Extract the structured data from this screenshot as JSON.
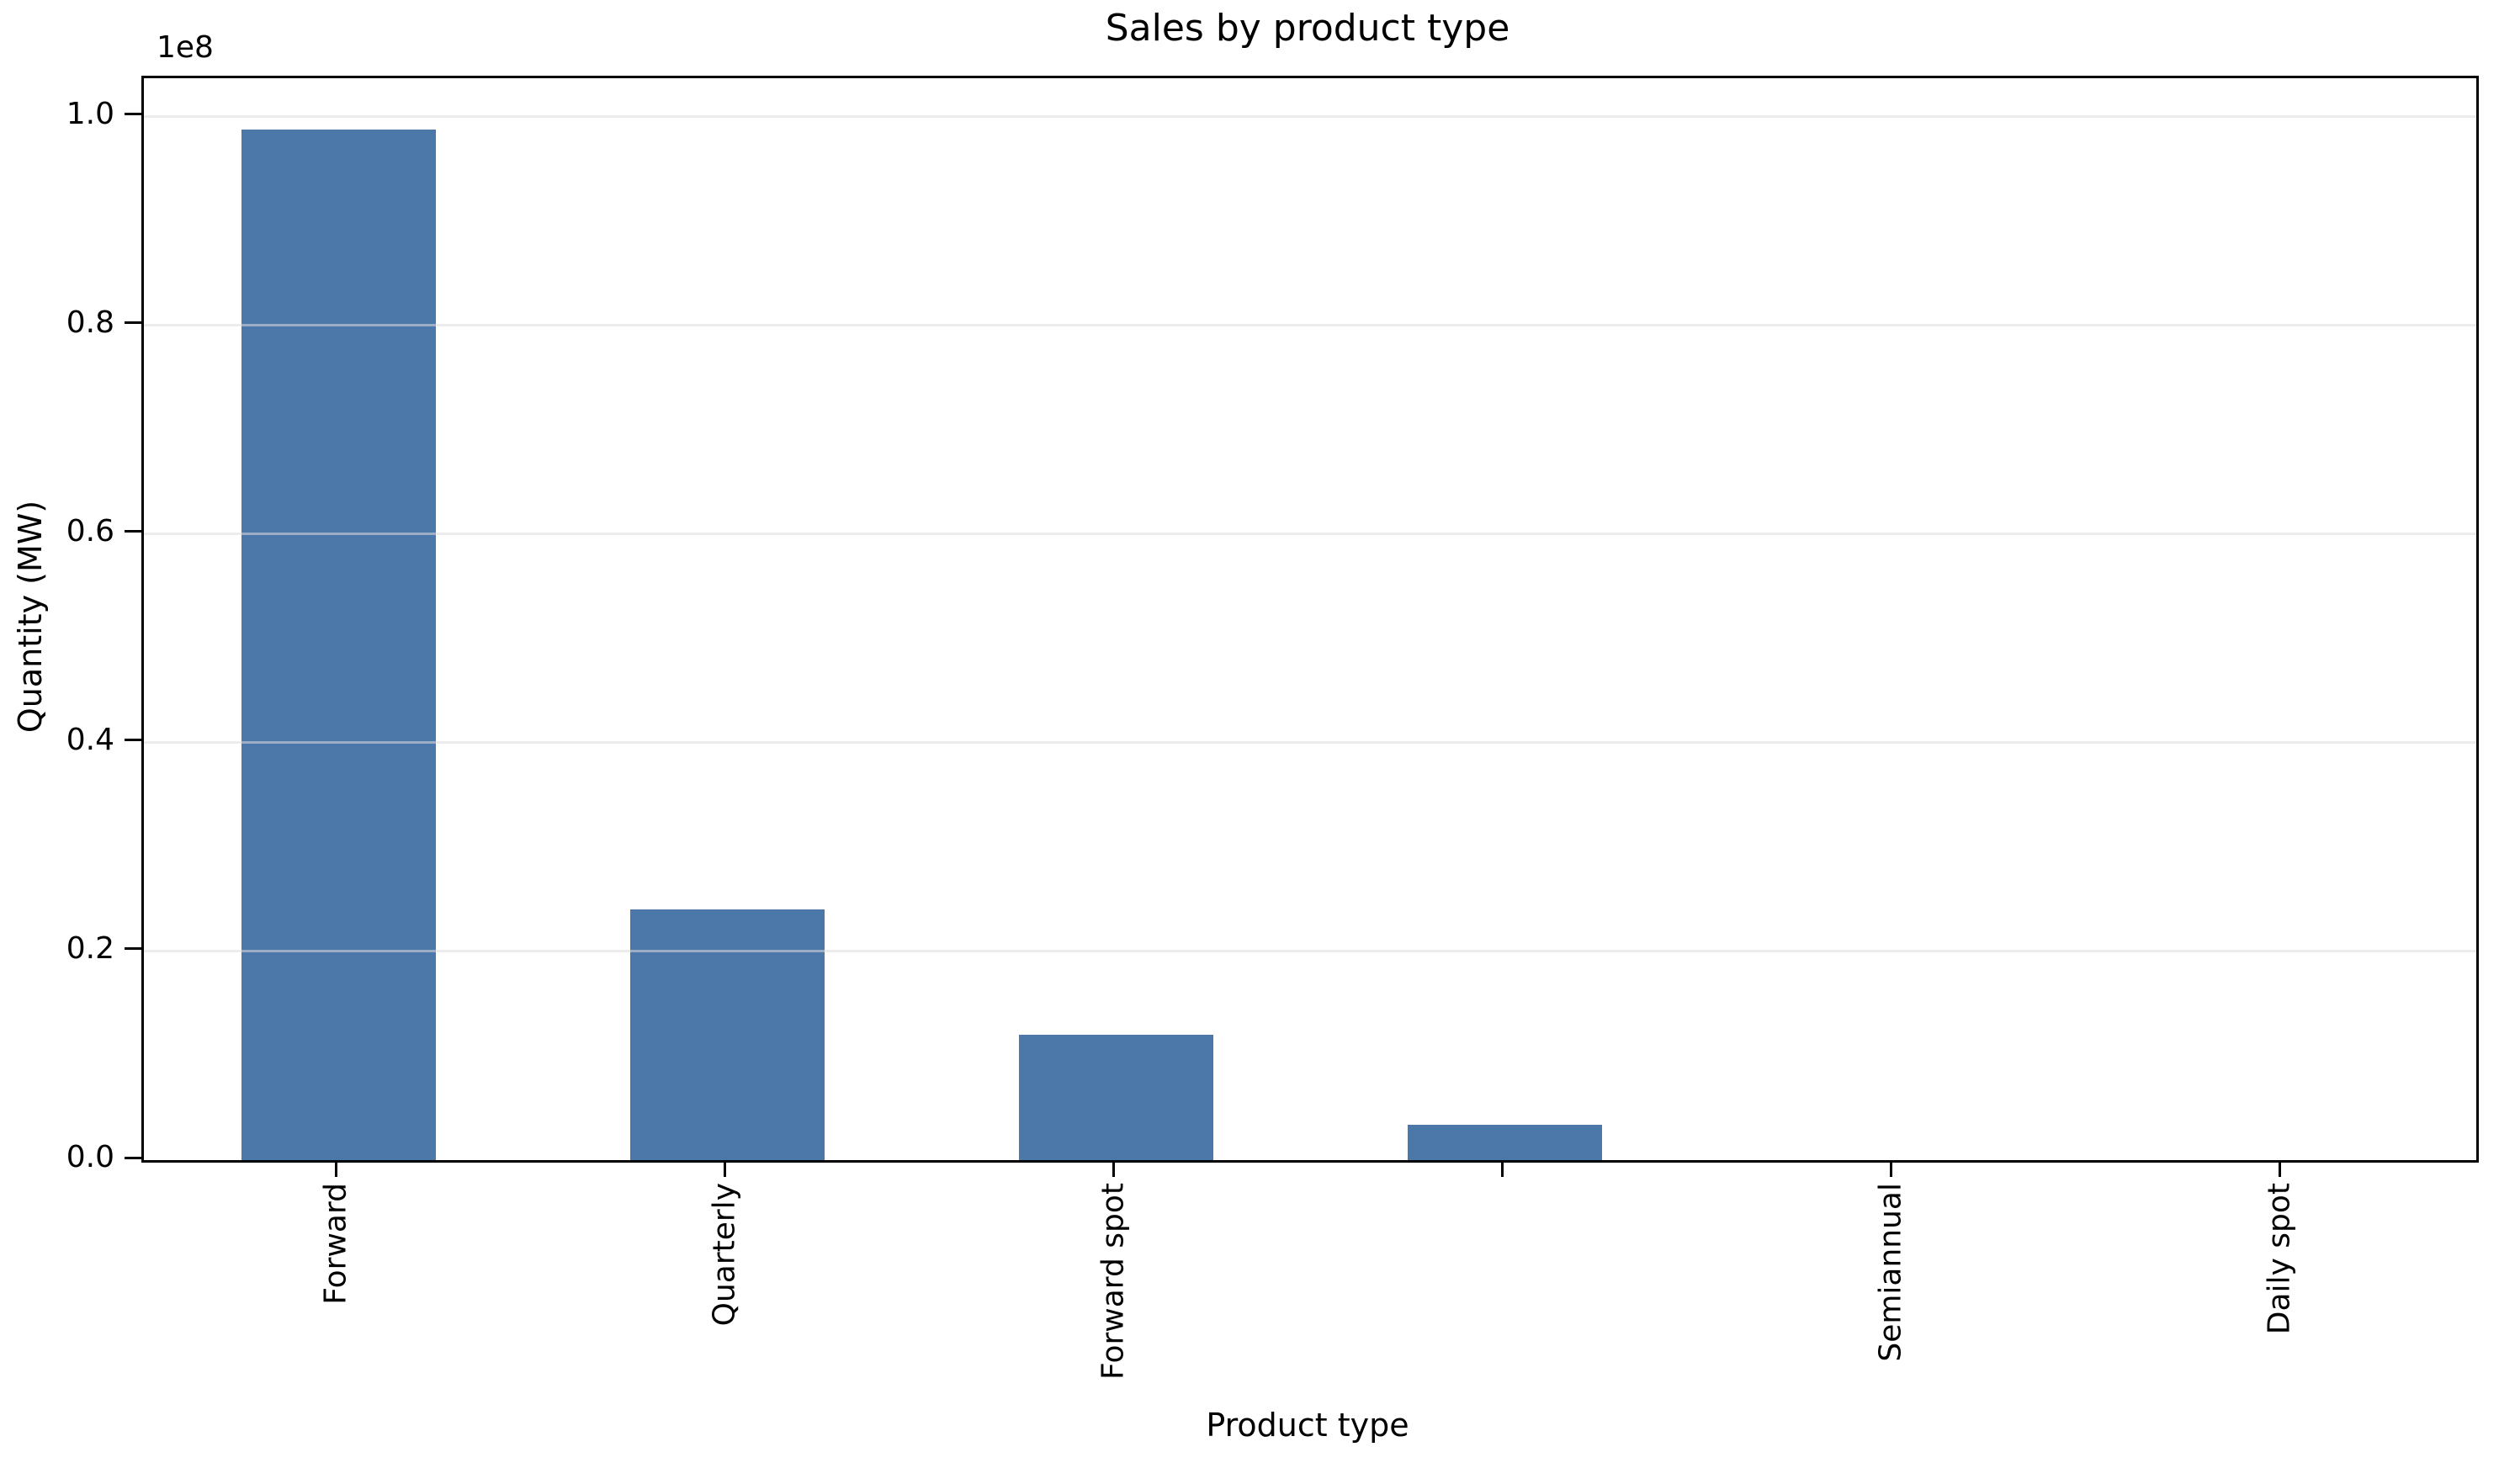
{
  "chart_data": {
    "type": "bar",
    "title": "Sales by product type",
    "xlabel": "Product type",
    "ylabel": "Quantity (MW)",
    "offset_text": "1e8",
    "categories": [
      "Forward",
      "Quarterly",
      "Forward spot",
      "",
      "Semiannual",
      "Daily spot"
    ],
    "values": [
      98800000,
      24000000,
      12000000,
      3400000,
      0,
      0
    ],
    "series_name": "Quantity (MW)",
    "ylim": [
      0,
      103700000
    ],
    "ytick_values": [
      0,
      20000000,
      40000000,
      60000000,
      80000000,
      100000000
    ],
    "ytick_labels": [
      "0.0",
      "0.2",
      "0.4",
      "0.6",
      "0.8",
      "1.0"
    ],
    "grid": "horizontal",
    "legend": "none",
    "bar_color": "#4C77A9",
    "grid_color": "rgba(220,220,220,0.55)",
    "axis_color": "#000000"
  }
}
